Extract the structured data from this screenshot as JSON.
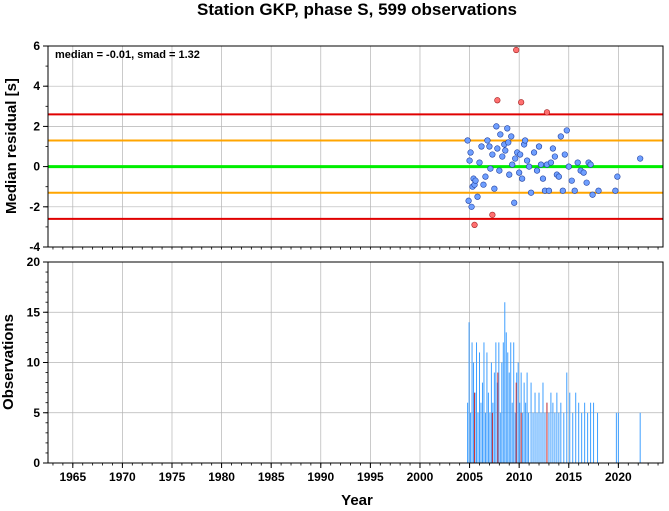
{
  "title": "Station GKP, phase S, 599 observations",
  "colors": {
    "grid": "#b4b4b4",
    "zero_line": "#00ee00",
    "mad2_lines": "#ffa500",
    "mad4_lines": "#e00000",
    "point_fill": "#6f9fff",
    "outlier_fill": "#ff7070",
    "bar_blue": "#3f9fff",
    "bar_red": "#d03030"
  },
  "chart_data": [
    {
      "type": "scatter",
      "panel": "top",
      "ylabel": "Median residual [s]",
      "ylim": [
        -4,
        6
      ],
      "xlim": [
        1962.5,
        2024.5
      ],
      "yticks": [
        "-4",
        "-2",
        "0",
        "2",
        "4",
        "6"
      ],
      "grid": true,
      "annotation": "median = -0.01, smad = 1.32",
      "hlines": [
        {
          "y": 0.0,
          "color": "green"
        },
        {
          "y": 1.3,
          "color": "orange"
        },
        {
          "y": -1.3,
          "color": "orange"
        },
        {
          "y": 2.6,
          "color": "red"
        },
        {
          "y": -2.6,
          "color": "red"
        }
      ],
      "points": [
        {
          "x": 2004.8,
          "y": 1.3
        },
        {
          "x": 2004.9,
          "y": -1.7
        },
        {
          "x": 2005.0,
          "y": 0.3
        },
        {
          "x": 2005.1,
          "y": 0.7
        },
        {
          "x": 2005.2,
          "y": -2.0
        },
        {
          "x": 2005.3,
          "y": -1.0
        },
        {
          "x": 2005.4,
          "y": -0.6
        },
        {
          "x": 2005.5,
          "y": -0.9
        },
        {
          "x": 2005.6,
          "y": -0.7
        },
        {
          "x": 2005.8,
          "y": -1.5
        },
        {
          "x": 2006.0,
          "y": 0.2
        },
        {
          "x": 2006.2,
          "y": 1.0
        },
        {
          "x": 2006.4,
          "y": -0.9
        },
        {
          "x": 2006.6,
          "y": -0.5
        },
        {
          "x": 2006.8,
          "y": 1.3
        },
        {
          "x": 2007.0,
          "y": 1.0
        },
        {
          "x": 2007.1,
          "y": -0.1
        },
        {
          "x": 2007.3,
          "y": 0.6
        },
        {
          "x": 2007.5,
          "y": -1.1
        },
        {
          "x": 2007.7,
          "y": 2.0
        },
        {
          "x": 2007.8,
          "y": 0.9
        },
        {
          "x": 2008.0,
          "y": -0.2
        },
        {
          "x": 2008.1,
          "y": 1.6
        },
        {
          "x": 2008.3,
          "y": 0.5
        },
        {
          "x": 2008.5,
          "y": 1.1
        },
        {
          "x": 2008.6,
          "y": 0.8
        },
        {
          "x": 2008.8,
          "y": 1.9
        },
        {
          "x": 2008.9,
          "y": 1.2
        },
        {
          "x": 2009.0,
          "y": -0.4
        },
        {
          "x": 2009.2,
          "y": 1.5
        },
        {
          "x": 2009.3,
          "y": 0.1
        },
        {
          "x": 2009.5,
          "y": -1.8
        },
        {
          "x": 2009.6,
          "y": 0.4
        },
        {
          "x": 2009.8,
          "y": 0.7
        },
        {
          "x": 2010.0,
          "y": -0.3
        },
        {
          "x": 2010.1,
          "y": 0.6
        },
        {
          "x": 2010.3,
          "y": -0.6
        },
        {
          "x": 2010.5,
          "y": 1.1
        },
        {
          "x": 2010.6,
          "y": 1.3
        },
        {
          "x": 2010.8,
          "y": 0.3
        },
        {
          "x": 2011.0,
          "y": 0.0
        },
        {
          "x": 2011.2,
          "y": -1.3
        },
        {
          "x": 2011.5,
          "y": 0.7
        },
        {
          "x": 2011.8,
          "y": -0.2
        },
        {
          "x": 2012.0,
          "y": 1.0
        },
        {
          "x": 2012.2,
          "y": 0.1
        },
        {
          "x": 2012.4,
          "y": -0.6
        },
        {
          "x": 2012.6,
          "y": -1.2
        },
        {
          "x": 2012.8,
          "y": 0.1
        },
        {
          "x": 2013.0,
          "y": -1.2
        },
        {
          "x": 2013.2,
          "y": 0.2
        },
        {
          "x": 2013.4,
          "y": 0.9
        },
        {
          "x": 2013.6,
          "y": 0.5
        },
        {
          "x": 2013.8,
          "y": -0.4
        },
        {
          "x": 2014.0,
          "y": -0.5
        },
        {
          "x": 2014.2,
          "y": 1.5
        },
        {
          "x": 2014.4,
          "y": -1.2
        },
        {
          "x": 2014.6,
          "y": 0.6
        },
        {
          "x": 2014.8,
          "y": 1.8
        },
        {
          "x": 2015.0,
          "y": 0.0
        },
        {
          "x": 2015.3,
          "y": -0.7
        },
        {
          "x": 2015.6,
          "y": -1.2
        },
        {
          "x": 2015.9,
          "y": 0.2
        },
        {
          "x": 2016.2,
          "y": -0.2
        },
        {
          "x": 2016.5,
          "y": -0.3
        },
        {
          "x": 2016.8,
          "y": -0.8
        },
        {
          "x": 2017.0,
          "y": 0.2
        },
        {
          "x": 2017.2,
          "y": 0.1
        },
        {
          "x": 2017.4,
          "y": -1.4
        },
        {
          "x": 2018.0,
          "y": -1.2
        },
        {
          "x": 2019.7,
          "y": -1.2
        },
        {
          "x": 2019.9,
          "y": -0.5
        },
        {
          "x": 2022.2,
          "y": 0.4
        }
      ],
      "outliers": [
        {
          "x": 2005.5,
          "y": -2.9
        },
        {
          "x": 2007.3,
          "y": -2.4
        },
        {
          "x": 2007.8,
          "y": 3.3
        },
        {
          "x": 2009.7,
          "y": 5.8
        },
        {
          "x": 2010.2,
          "y": 3.2
        },
        {
          "x": 2012.8,
          "y": 2.7
        }
      ]
    },
    {
      "type": "bar",
      "panel": "bottom",
      "ylabel": "Observations",
      "xlabel": "Year",
      "ylim": [
        0,
        20
      ],
      "xlim": [
        1962.5,
        2024.5
      ],
      "yticks": [
        "0",
        "5",
        "10",
        "15",
        "20"
      ],
      "xticks": [
        "1965",
        "1970",
        "1975",
        "1980",
        "1985",
        "1990",
        "1995",
        "2000",
        "2005",
        "2010",
        "2015",
        "2020"
      ],
      "grid": true,
      "series": [
        {
          "color": "blue",
          "bars": [
            {
              "x": 2004.8,
              "y": 6
            },
            {
              "x": 2004.95,
              "y": 14
            },
            {
              "x": 2005.1,
              "y": 5
            },
            {
              "x": 2005.25,
              "y": 12
            },
            {
              "x": 2005.4,
              "y": 10
            },
            {
              "x": 2005.55,
              "y": 7
            },
            {
              "x": 2005.7,
              "y": 12
            },
            {
              "x": 2005.85,
              "y": 5
            },
            {
              "x": 2006.0,
              "y": 11
            },
            {
              "x": 2006.15,
              "y": 6
            },
            {
              "x": 2006.3,
              "y": 8
            },
            {
              "x": 2006.45,
              "y": 12
            },
            {
              "x": 2006.6,
              "y": 5
            },
            {
              "x": 2006.75,
              "y": 11
            },
            {
              "x": 2006.9,
              "y": 7
            },
            {
              "x": 2007.05,
              "y": 5
            },
            {
              "x": 2007.2,
              "y": 10
            },
            {
              "x": 2007.35,
              "y": 6
            },
            {
              "x": 2007.5,
              "y": 9
            },
            {
              "x": 2007.65,
              "y": 12
            },
            {
              "x": 2007.8,
              "y": 8
            },
            {
              "x": 2007.95,
              "y": 12
            },
            {
              "x": 2008.1,
              "y": 5
            },
            {
              "x": 2008.25,
              "y": 10
            },
            {
              "x": 2008.4,
              "y": 12
            },
            {
              "x": 2008.55,
              "y": 16
            },
            {
              "x": 2008.7,
              "y": 13
            },
            {
              "x": 2008.85,
              "y": 11
            },
            {
              "x": 2009.0,
              "y": 9
            },
            {
              "x": 2009.15,
              "y": 12
            },
            {
              "x": 2009.3,
              "y": 6
            },
            {
              "x": 2009.45,
              "y": 12
            },
            {
              "x": 2009.6,
              "y": 5
            },
            {
              "x": 2009.75,
              "y": 9
            },
            {
              "x": 2009.9,
              "y": 10
            },
            {
              "x": 2010.05,
              "y": 6
            },
            {
              "x": 2010.2,
              "y": 9
            },
            {
              "x": 2010.35,
              "y": 5
            },
            {
              "x": 2010.5,
              "y": 8
            },
            {
              "x": 2010.65,
              "y": 6
            },
            {
              "x": 2010.8,
              "y": 9
            },
            {
              "x": 2010.95,
              "y": 5
            },
            {
              "x": 2011.2,
              "y": 8
            },
            {
              "x": 2011.4,
              "y": 5
            },
            {
              "x": 2011.6,
              "y": 7
            },
            {
              "x": 2011.8,
              "y": 5
            },
            {
              "x": 2012.0,
              "y": 7
            },
            {
              "x": 2012.2,
              "y": 5
            },
            {
              "x": 2012.4,
              "y": 8
            },
            {
              "x": 2012.6,
              "y": 5
            },
            {
              "x": 2012.8,
              "y": 6
            },
            {
              "x": 2013.0,
              "y": 5
            },
            {
              "x": 2013.2,
              "y": 7
            },
            {
              "x": 2013.4,
              "y": 6
            },
            {
              "x": 2013.6,
              "y": 5
            },
            {
              "x": 2013.8,
              "y": 7
            },
            {
              "x": 2014.0,
              "y": 5
            },
            {
              "x": 2014.2,
              "y": 6
            },
            {
              "x": 2014.5,
              "y": 5
            },
            {
              "x": 2014.8,
              "y": 9
            },
            {
              "x": 2015.1,
              "y": 7
            },
            {
              "x": 2015.4,
              "y": 5
            },
            {
              "x": 2015.7,
              "y": 7
            },
            {
              "x": 2016.0,
              "y": 6
            },
            {
              "x": 2016.3,
              "y": 5
            },
            {
              "x": 2016.6,
              "y": 6
            },
            {
              "x": 2016.9,
              "y": 5
            },
            {
              "x": 2017.2,
              "y": 6
            },
            {
              "x": 2017.5,
              "y": 6
            },
            {
              "x": 2017.9,
              "y": 5
            },
            {
              "x": 2019.8,
              "y": 5
            },
            {
              "x": 2020.0,
              "y": 5
            },
            {
              "x": 2022.2,
              "y": 5
            }
          ]
        },
        {
          "color": "red",
          "bars": [
            {
              "x": 2005.5,
              "y": 7
            },
            {
              "x": 2007.3,
              "y": 5
            },
            {
              "x": 2007.85,
              "y": 9
            },
            {
              "x": 2009.7,
              "y": 8
            },
            {
              "x": 2010.2,
              "y": 5
            },
            {
              "x": 2012.8,
              "y": 6
            }
          ]
        }
      ]
    }
  ]
}
